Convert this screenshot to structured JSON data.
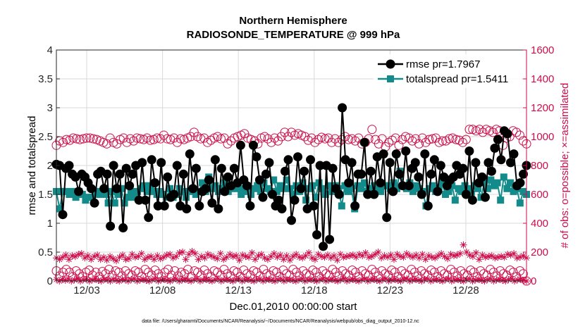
{
  "chart_data": {
    "type": "line",
    "title": "Northern Hemisphere",
    "subtitle": "RADIOSONDE_TEMPERATURE @ 999 hPa",
    "xlabel": "Dec.01,2010 00:00:00 start",
    "ylabel_left": "rmse and totalspread",
    "ylabel_right": "# of obs: o=possible; ×=assimilated",
    "footnote": "data file: /Users/gharamti/Documents/NCAR/Reanalysis/~/Documents/NCAR/Reanalysis/webpub/obs_diag_output_2010-12.nc",
    "xlim": [
      1,
      32
    ],
    "ylim_left": [
      0,
      4
    ],
    "ylim_right": [
      0,
      1600
    ],
    "x_ticks": [
      3,
      8,
      13,
      18,
      23,
      28
    ],
    "x_tick_labels": [
      "12/03",
      "12/08",
      "12/13",
      "12/18",
      "12/23",
      "12/28"
    ],
    "y_ticks_left": [
      "0",
      "0.5",
      "1",
      "1.5",
      "2",
      "2.5",
      "3",
      "3.5",
      "4"
    ],
    "y_ticks_right": [
      "0",
      "200",
      "400",
      "600",
      "800",
      "1000",
      "1200",
      "1400",
      "1600"
    ],
    "colors": {
      "rmse": "#000000",
      "spread": "#138b8b",
      "obs": "#cc0d4a"
    },
    "series": [
      {
        "name": "rmse pr=1.7967",
        "values": [
          2.02,
          2.0,
          1.15,
          1.95,
          2.0,
          1.85,
          1.8,
          1.55,
          1.85,
          1.8,
          1.7,
          1.6,
          1.35,
          1.85,
          1.9,
          1.6,
          1.85,
          0.95,
          2.0,
          1.6,
          1.85,
          0.92,
          1.95,
          1.65,
          1.85,
          2.0,
          1.4,
          2.05,
          1.4,
          1.1,
          2.1,
          1.7,
          1.3,
          2.05,
          1.3,
          1.8,
          1.45,
          1.5,
          2.0,
          1.3,
          1.85,
          1.25,
          2.2,
          1.6,
          1.95,
          1.3,
          1.55,
          1.6,
          1.75,
          1.35,
          2.1,
          1.25,
          1.95,
          1.55,
          1.8,
          1.65,
          1.95,
          1.7,
          2.35,
          1.75,
          1.65,
          1.3,
          2.35,
          2.15,
          1.75,
          1.45,
          1.85,
          2.05,
          1.5,
          1.3,
          1.4,
          1.25,
          1.9,
          2.1,
          1.05,
          1.4,
          2.15,
          1.6,
          1.9,
          1.25,
          2.1,
          1.3,
          0.8,
          2.0,
          0.6,
          2.0,
          0.72,
          1.95,
          1.6,
          1.5,
          3.0,
          2.1,
          1.7,
          2.05,
          1.3,
          1.85,
          1.85,
          2.4,
          1.5,
          1.9,
          1.5,
          2.15,
          1.7,
          2.2,
          1.1,
          2.05,
          1.55,
          2.2,
          1.85,
          1.65,
          2.25,
          1.65,
          1.95,
          2.05,
          1.8,
          1.5,
          2.2,
          1.3,
          1.85,
          2.1,
          1.55,
          2.0,
          1.8,
          1.65,
          1.75,
          1.8,
          2.0,
          1.85,
          1.95,
          1.5,
          2.25,
          1.4,
          2.05,
          1.7,
          1.8,
          1.45,
          2.05,
          1.9,
          2.3,
          2.45,
          2.1,
          2.6,
          2.55,
          2.05,
          2.2,
          1.65,
          1.7,
          1.85,
          2.0
        ]
      },
      {
        "name": "totalspread pr=1.5411",
        "values": [
          1.55,
          1.25,
          1.55,
          1.55,
          1.5,
          1.55,
          1.45,
          1.55,
          1.5,
          1.4,
          1.45,
          1.45,
          1.55,
          1.5,
          1.55,
          1.5,
          1.35,
          1.55,
          1.35,
          1.5,
          1.6,
          1.35,
          1.45,
          1.55,
          1.45,
          1.55,
          1.6,
          1.65,
          1.55,
          1.65,
          1.55,
          1.5,
          1.55,
          1.5,
          1.45,
          1.6,
          1.45,
          1.5,
          1.6,
          1.55,
          1.45,
          1.55,
          1.6,
          1.5,
          1.55,
          1.7,
          1.55,
          1.8,
          1.6,
          1.65,
          1.55,
          1.6,
          1.7,
          1.55,
          1.6,
          1.65,
          1.6,
          1.5,
          1.6,
          1.55,
          1.5,
          1.6,
          1.65,
          1.55,
          1.7,
          1.6,
          1.55,
          1.75,
          1.55,
          1.65,
          1.6,
          1.75,
          1.6,
          1.5,
          1.65,
          1.55,
          1.7,
          1.4,
          1.6,
          1.65,
          1.45,
          1.7,
          1.6,
          1.5,
          1.65,
          1.55,
          1.65,
          1.6,
          1.3,
          1.65,
          1.55,
          1.6,
          1.25,
          1.65,
          1.6,
          1.7,
          1.55,
          1.6,
          1.65,
          1.6,
          1.55,
          1.65,
          1.65,
          1.6,
          1.7,
          1.6,
          1.9,
          1.65,
          1.6,
          1.7,
          1.55,
          1.65,
          1.6,
          1.55,
          1.3,
          1.6,
          1.65,
          1.55,
          1.6,
          1.7,
          1.5,
          1.55,
          1.65,
          1.4,
          1.6,
          1.55,
          1.65,
          1.6,
          1.5,
          1.65,
          1.6,
          1.45,
          1.7,
          1.6,
          1.75,
          1.65,
          1.7,
          1.4,
          1.8,
          1.6,
          1.7,
          1.55,
          1.6,
          1.35,
          1.55,
          1.5
        ]
      }
    ],
    "obs_possible_top": [
      940,
      970,
      960,
      980,
      975,
      990,
      985,
      980,
      985,
      990,
      990,
      985,
      980,
      970,
      960,
      950,
      990,
      960,
      950,
      980,
      990,
      960,
      985,
      970,
      990,
      985,
      980,
      990,
      975,
      980,
      990,
      985,
      1010,
      985,
      980,
      990,
      960,
      985,
      980,
      990,
      1000,
      1030,
      1000,
      985,
      990,
      960,
      975,
      990,
      1000,
      985,
      990,
      950,
      970,
      990,
      1000,
      1010,
      1020,
      990,
      980,
      970,
      950,
      990,
      1000,
      985,
      960,
      990,
      970,
      1000,
      1030,
      1000,
      1030,
      1010,
      1020,
      1010,
      1000,
      975,
      990,
      960,
      980,
      995,
      985,
      990,
      960,
      985,
      960,
      980,
      1000,
      980,
      985,
      970,
      990,
      950,
      960,
      985,
      1050,
      980,
      950,
      985,
      930,
      960,
      975,
      990,
      940,
      980,
      1000,
      990,
      970,
      985,
      950,
      990,
      960,
      980,
      985,
      990,
      960,
      970,
      970,
      985,
      990,
      980,
      975,
      960,
      980,
      1050,
      1050,
      1040,
      1050,
      1030,
      1050,
      1040,
      1030,
      1050,
      1040,
      940,
      990,
      1000,
      1040,
      1030,
      1010,
      970,
      950
    ],
    "obs_possible_bottom": [
      70,
      35,
      60,
      80,
      60,
      30,
      70,
      50,
      30,
      60,
      75,
      40,
      60,
      30,
      65,
      50,
      80,
      40,
      70,
      60,
      35,
      70,
      50,
      40,
      70,
      60,
      30,
      80,
      60,
      40,
      75,
      50,
      30,
      60,
      80,
      40,
      70,
      35,
      60,
      50,
      80,
      30,
      70,
      60,
      40,
      75,
      50,
      30,
      70,
      60,
      40,
      80,
      50,
      35,
      70,
      60,
      30,
      75,
      50,
      40,
      70,
      60,
      35,
      80,
      50,
      40,
      70,
      60,
      30,
      75,
      50,
      40,
      80,
      60,
      35,
      70,
      50,
      40,
      75,
      60,
      30,
      70,
      50,
      40,
      80,
      60,
      35,
      70,
      50,
      40,
      75,
      60,
      30,
      70,
      50,
      40,
      80,
      60,
      35,
      70,
      50,
      40,
      75,
      60,
      30,
      70,
      50,
      40,
      80,
      60,
      35,
      70,
      50,
      40,
      75,
      60,
      30,
      70,
      50,
      40,
      80,
      60,
      35,
      70,
      50,
      40,
      75,
      60,
      30,
      70,
      50,
      40,
      80,
      60,
      35,
      70,
      50,
      40,
      75,
      60,
      30,
      70,
      50,
      0
    ],
    "obs_assimilated_top": [
      160,
      150,
      165,
      180,
      150,
      175,
      170,
      185,
      190,
      160,
      175,
      150,
      170,
      180,
      150,
      165,
      145,
      170,
      155,
      140,
      165,
      180,
      150,
      155,
      185,
      165,
      170,
      190,
      150,
      165,
      170,
      150,
      175,
      155,
      165,
      180,
      185,
      160,
      170,
      195,
      200,
      150,
      185,
      205,
      190,
      150,
      170,
      160,
      185,
      175,
      165,
      155,
      190,
      150,
      165,
      185,
      170,
      175,
      145,
      180,
      170,
      165,
      195,
      150,
      175,
      185,
      160,
      150,
      170,
      190,
      165,
      180,
      150,
      175,
      145,
      170,
      185,
      165,
      160,
      175,
      195,
      160,
      150,
      185,
      170,
      165,
      180,
      160,
      175,
      145,
      185,
      165,
      170,
      175,
      180,
      165,
      185,
      175,
      195,
      165,
      170,
      185,
      200,
      160,
      175,
      165,
      180,
      150,
      185,
      170,
      165,
      190,
      175,
      165,
      180,
      160,
      185,
      150,
      175,
      165,
      160,
      175,
      190,
      170,
      155,
      185,
      175,
      180,
      190,
      250,
      200,
      180,
      170,
      195,
      150,
      180,
      165,
      170,
      175,
      160,
      165,
      170,
      165,
      185,
      180,
      190,
      160,
      165,
      175,
      160
    ],
    "obs_assimilated_bottom": [
      10,
      0,
      12,
      5,
      15,
      0,
      8,
      15,
      0,
      10,
      12,
      0,
      8,
      15,
      5,
      0,
      12,
      8,
      0,
      15,
      5,
      0,
      12,
      8,
      0,
      10,
      15,
      0,
      8,
      12,
      5,
      0,
      10,
      15,
      0,
      8,
      12,
      5,
      0,
      10,
      15,
      0,
      8,
      12,
      5,
      0,
      10,
      15,
      0,
      8,
      12,
      5,
      0,
      10,
      15,
      0,
      8,
      12,
      5,
      0,
      10,
      15,
      0,
      8,
      12,
      5,
      0,
      10,
      15,
      0,
      8,
      12,
      5,
      0,
      10,
      15,
      0,
      8,
      12,
      5,
      0,
      10,
      15,
      0,
      8,
      12,
      5,
      0,
      10,
      15,
      0,
      8,
      12,
      5,
      0,
      10,
      15,
      0,
      8,
      12,
      5,
      0,
      10,
      15,
      0,
      8,
      12,
      5,
      0,
      10,
      15,
      0,
      8,
      12,
      5,
      0,
      10,
      15,
      0,
      8,
      12,
      5,
      0,
      10,
      15,
      0,
      8,
      12,
      5,
      0,
      10,
      15,
      0,
      8,
      12,
      5,
      0,
      10,
      15,
      0,
      8,
      12,
      5,
      0,
      10,
      15,
      0,
      8,
      12,
      5,
      0,
      10,
      15,
      0,
      8,
      12,
      5,
      0
    ]
  }
}
